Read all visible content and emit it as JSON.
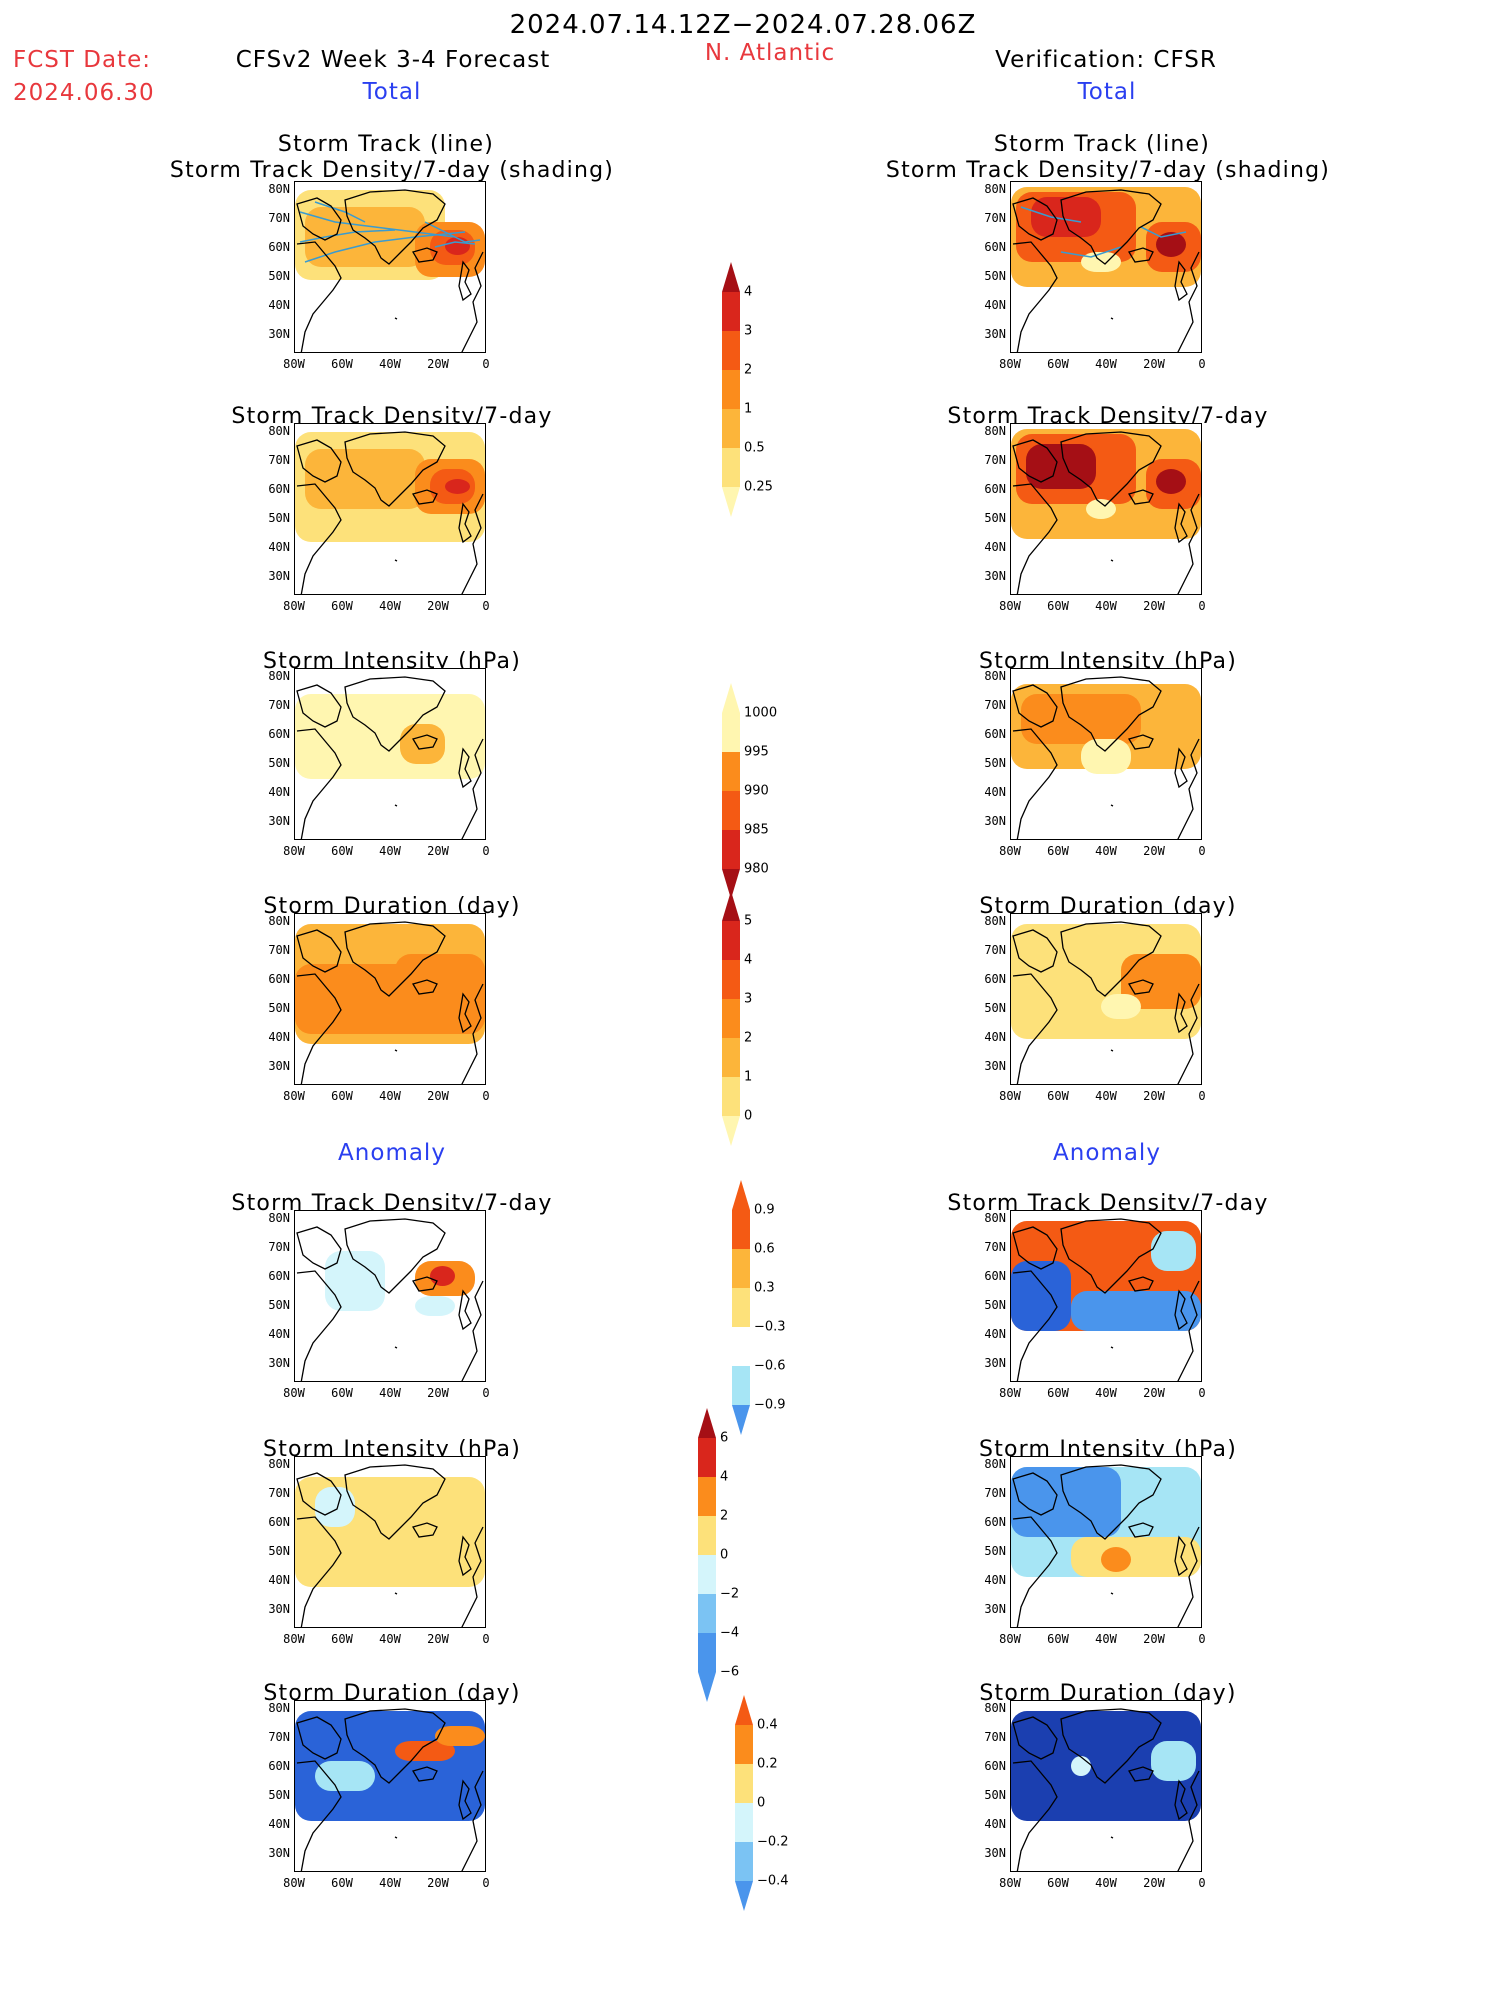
{
  "header": {
    "date_range": "2024.07.14.12Z−2024.07.28.06Z",
    "fcst_label": "FCST Date:",
    "fcst_date": "2024.06.30",
    "model": "CFSv2 Week 3-4 Forecast",
    "region": "N. Atlantic",
    "verification": "Verification: CFSR",
    "total_label": "Total",
    "anomaly_label": "Anomaly"
  },
  "panel_titles": {
    "track_line": "Storm Track (line)",
    "track_shading": "Storm Track Density/7-day (shading)",
    "density": "Storm Track Density/7-day",
    "intensity": "Storm Intensity (hPa)",
    "duration": "Storm Duration (day)"
  },
  "axes": {
    "lat_labels": [
      "80N",
      "70N",
      "60N",
      "50N",
      "40N",
      "30N"
    ],
    "lon_labels": [
      "80W",
      "60W",
      "40W",
      "20W",
      "0"
    ]
  },
  "colorbars": {
    "density_total": [
      "4",
      "3",
      "2",
      "1",
      "0.5",
      "0.25"
    ],
    "intensity_total": [
      "1000",
      "995",
      "990",
      "985",
      "980"
    ],
    "duration_total": [
      "5",
      "4",
      "3",
      "2",
      "1",
      "0"
    ],
    "density_anom": [
      "0.9",
      "0.6",
      "0.3",
      "−0.3",
      "−0.6",
      "−0.9"
    ],
    "intensity_anom": [
      "6",
      "4",
      "2",
      "0",
      "−2",
      "−4",
      "−6"
    ],
    "duration_anom": [
      "0.4",
      "0.2",
      "0",
      "−0.2",
      "−0.4"
    ]
  },
  "colors": {
    "header_red": "#e8383d",
    "header_blue": "#2a3ff0",
    "warm": [
      "#fff6b0",
      "#fde17a",
      "#fcb53a",
      "#fb8c1c",
      "#f45a14",
      "#d9261c",
      "#a50f15"
    ],
    "cool": [
      "#d4f5fb",
      "#a6e5f5",
      "#7bc3f3",
      "#4a95ec",
      "#2a63d8",
      "#1b3fb0"
    ],
    "track_line": "#3a9bd0"
  }
}
